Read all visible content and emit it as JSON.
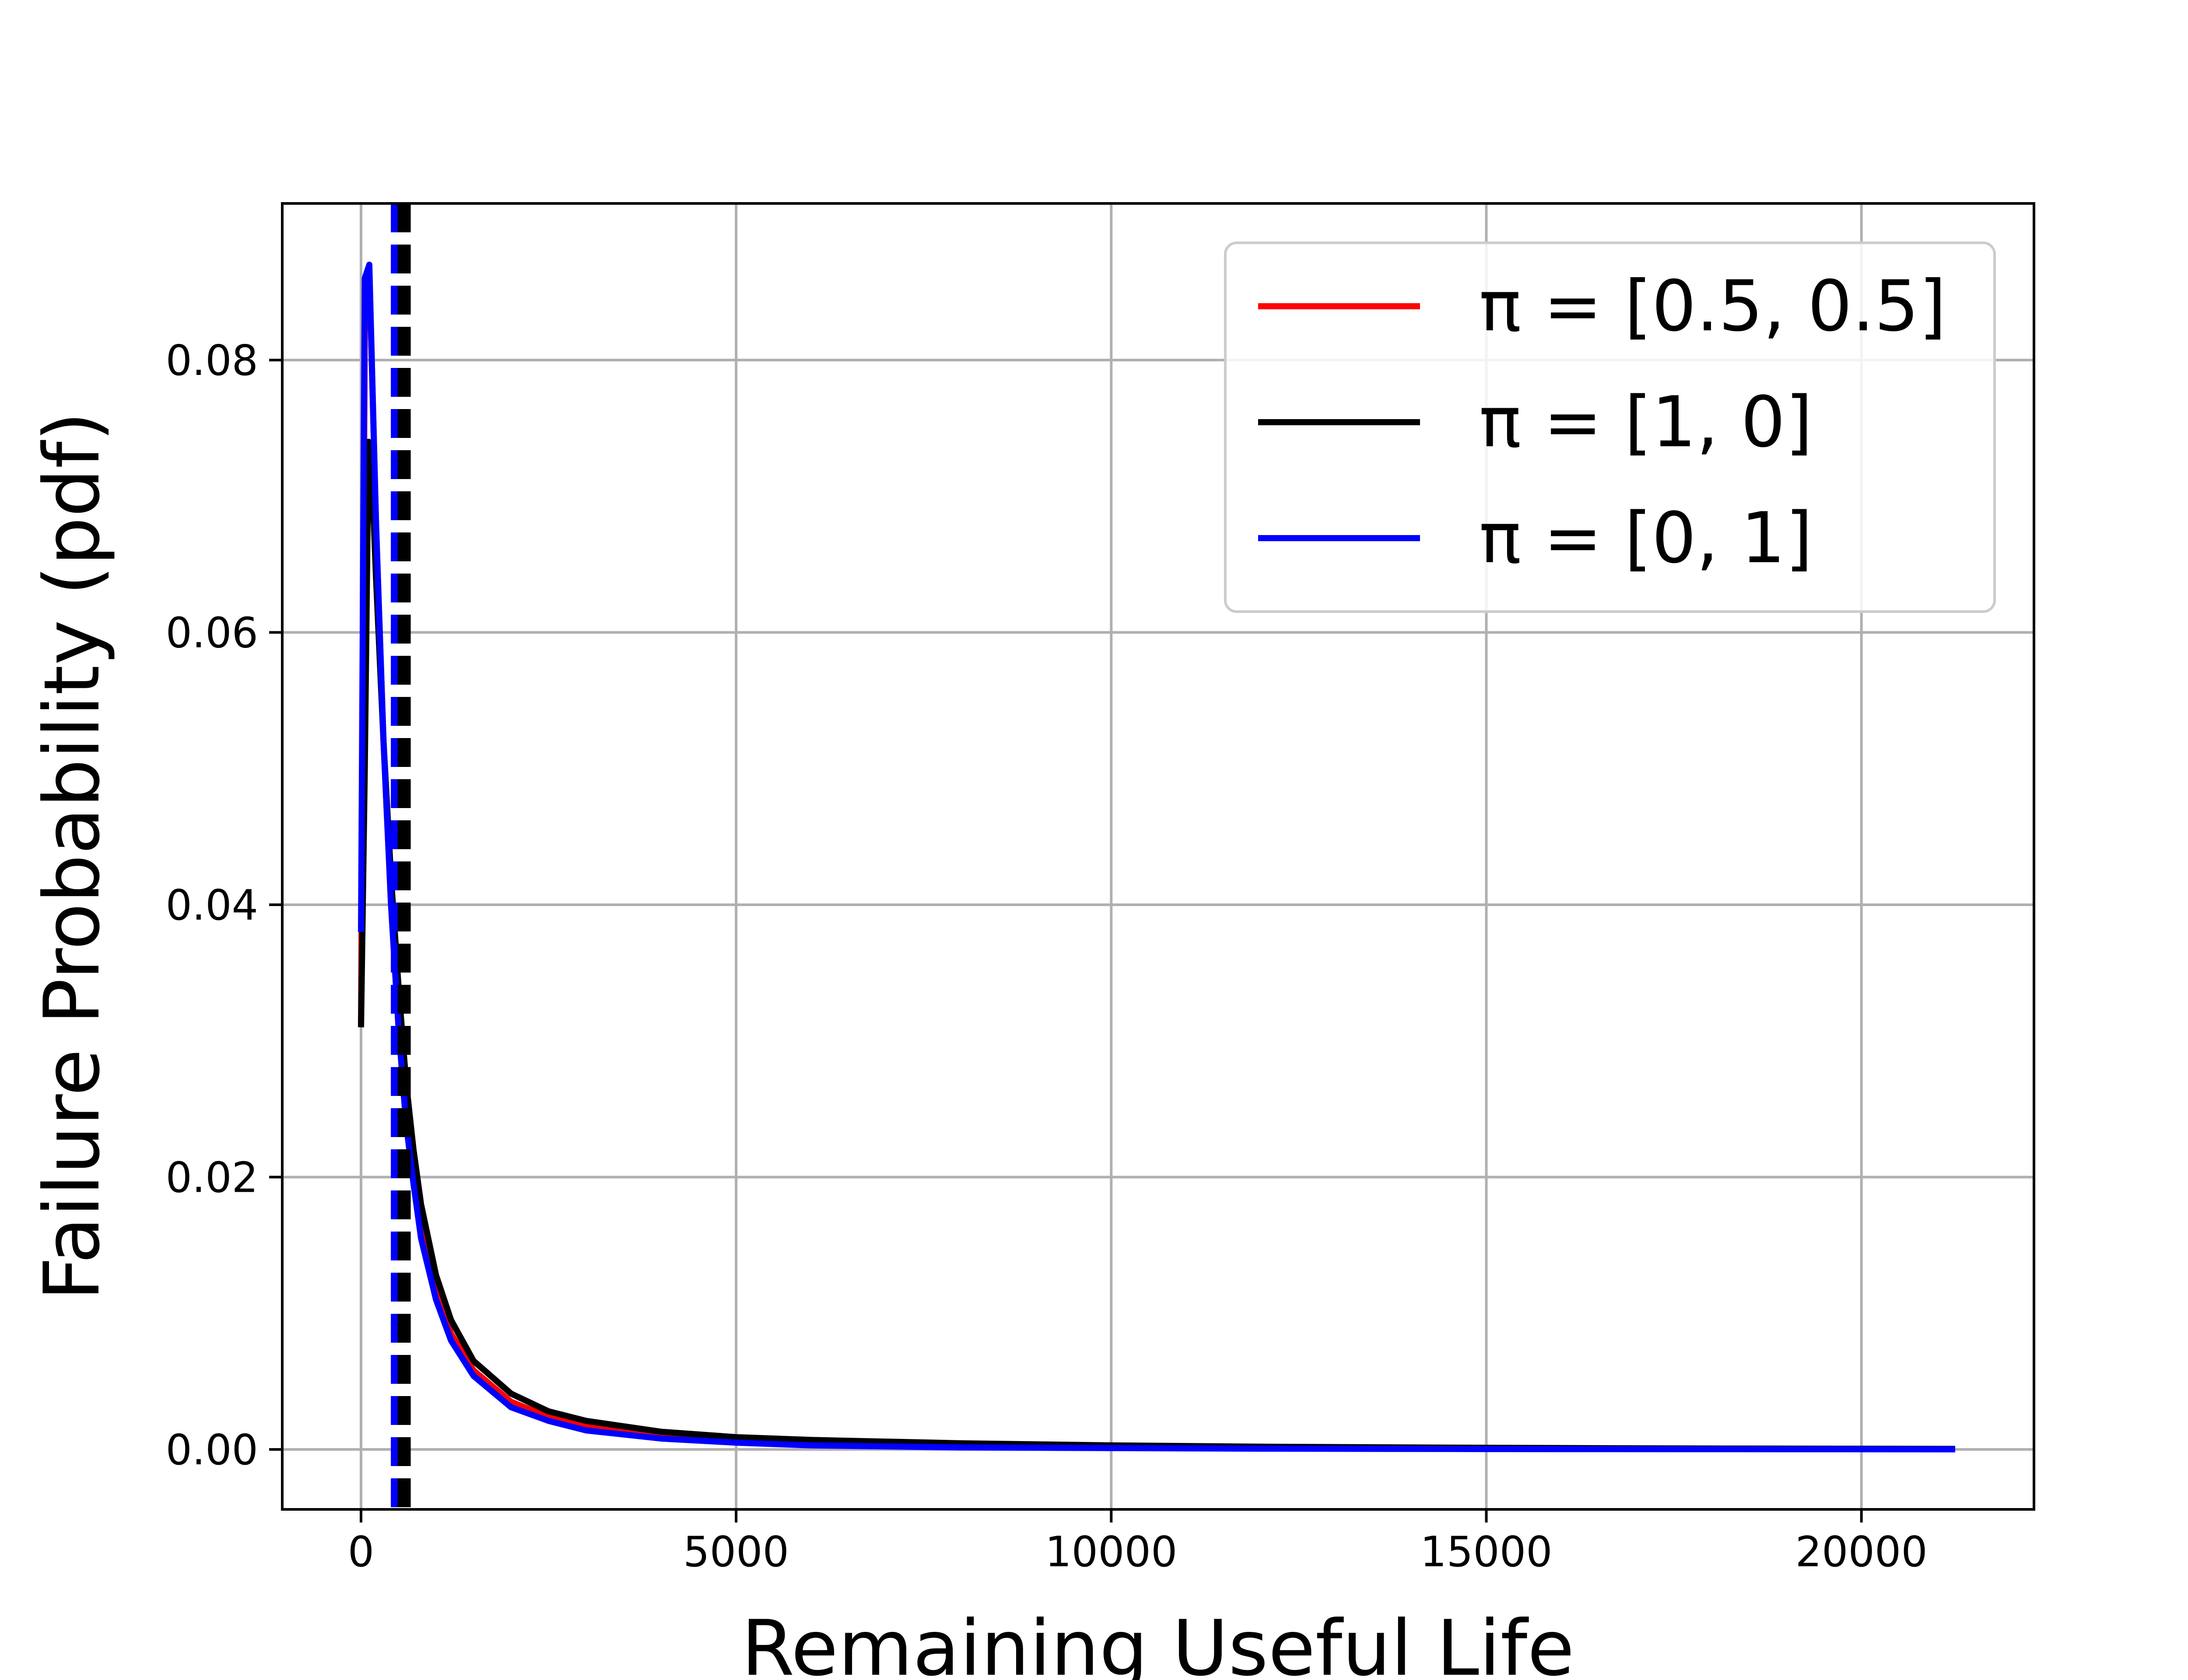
{
  "chart_data": {
    "type": "line",
    "title": "",
    "xlabel": "Remaining Useful Life",
    "ylabel": "Failure Probability (pdf)",
    "xlim": [
      -1050,
      22300
    ],
    "ylim": [
      -0.0044,
      0.0915
    ],
    "xticks": [
      0,
      5000,
      10000,
      15000,
      20000
    ],
    "xtick_labels": [
      "0",
      "5000",
      "10000",
      "15000",
      "20000"
    ],
    "yticks": [
      0.0,
      0.02,
      0.04,
      0.06,
      0.08
    ],
    "ytick_labels": [
      "0.00",
      "0.02",
      "0.04",
      "0.06",
      "0.08"
    ],
    "grid": true,
    "legend_position": "top-right",
    "series": [
      {
        "name": "π = [0.5, 0.5]",
        "color": "#ff0000",
        "x": [
          0,
          50,
          110,
          200,
          300,
          400,
          500,
          600,
          700,
          800,
          1000,
          1200,
          1500,
          2000,
          2500,
          3000,
          4000,
          5000,
          6000,
          8000,
          10000,
          12000,
          15000,
          18000,
          21250
        ],
        "y": [
          0.031,
          0.082,
          0.087,
          0.068,
          0.052,
          0.04,
          0.031,
          0.024,
          0.0195,
          0.016,
          0.0115,
          0.0085,
          0.0058,
          0.0035,
          0.0024,
          0.0017,
          0.001,
          0.0007,
          0.0005,
          0.0003,
          0.0002,
          0.00013,
          8e-05,
          5e-05,
          3e-05
        ]
      },
      {
        "name": "π = [1, 0]",
        "color": "#000000",
        "x": [
          0,
          50,
          100,
          150,
          200,
          300,
          400,
          500,
          600,
          700,
          800,
          1000,
          1200,
          1500,
          2000,
          2500,
          3000,
          4000,
          5000,
          6000,
          8000,
          10000,
          12000,
          15000,
          18000,
          21250
        ],
        "y": [
          0.031,
          0.05,
          0.074,
          0.071,
          0.064,
          0.052,
          0.042,
          0.034,
          0.027,
          0.022,
          0.018,
          0.0128,
          0.0095,
          0.0065,
          0.0041,
          0.0028,
          0.0021,
          0.0013,
          0.0009,
          0.0007,
          0.00045,
          0.0003,
          0.0002,
          0.00012,
          7e-05,
          4e-05
        ]
      },
      {
        "name": "π = [0, 1]",
        "color": "#0000ff",
        "x": [
          0,
          50,
          110,
          200,
          300,
          400,
          500,
          600,
          700,
          800,
          1000,
          1200,
          1500,
          2000,
          2500,
          3000,
          4000,
          5000,
          6000,
          8000,
          10000,
          12000,
          15000,
          18000,
          21250
        ],
        "y": [
          0.038,
          0.086,
          0.087,
          0.068,
          0.052,
          0.04,
          0.031,
          0.024,
          0.0195,
          0.0155,
          0.011,
          0.008,
          0.0054,
          0.0031,
          0.0021,
          0.0014,
          0.0008,
          0.0005,
          0.0003,
          0.00015,
          0.0001,
          6e-05,
          3e-05,
          2e-05,
          1e-05
        ]
      }
    ],
    "vlines": [
      {
        "x": 450,
        "color": "#0000ff",
        "style": "dashed"
      },
      {
        "x": 540,
        "color": "#000000",
        "style": "dashed"
      },
      {
        "x": 610,
        "color": "#000000",
        "style": "dashed"
      }
    ]
  }
}
